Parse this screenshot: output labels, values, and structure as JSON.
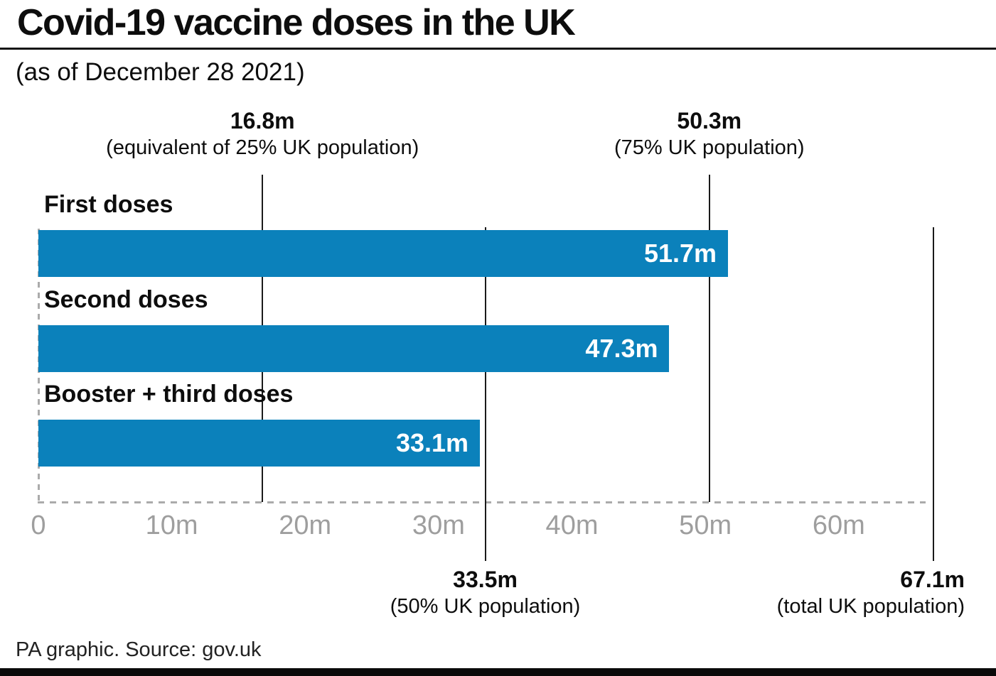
{
  "chart_data": {
    "type": "bar",
    "orientation": "horizontal",
    "title": "Covid-19 vaccine doses in the UK",
    "subtitle": "(as of December 28 2021)",
    "source": "PA graphic. Source: gov.uk",
    "categories": [
      "First doses",
      "Second doses",
      "Booster + third doses"
    ],
    "values": [
      51.7,
      47.3,
      33.1
    ],
    "value_labels": [
      "51.7m",
      "47.3m",
      "33.1m"
    ],
    "unit": "millions of doses",
    "x_max": 67.1,
    "x_ticks": [
      {
        "label": "0",
        "value": 0
      },
      {
        "label": "10m",
        "value": 10
      },
      {
        "label": "20m",
        "value": 20
      },
      {
        "label": "30m",
        "value": 30
      },
      {
        "label": "40m",
        "value": 40
      },
      {
        "label": "50m",
        "value": 50
      },
      {
        "label": "60m",
        "value": 60
      }
    ],
    "grid": "off",
    "legend": "none",
    "axis_style": "dashed-gray",
    "reference_lines": [
      {
        "value": 16.8,
        "label": "16.8m",
        "sublabel": "(equivalent of 25% UK population)",
        "position": "top",
        "align": "center"
      },
      {
        "value": 50.3,
        "label": "50.3m",
        "sublabel": "(75% UK population)",
        "position": "top",
        "align": "center"
      },
      {
        "value": 33.5,
        "label": "33.5m",
        "sublabel": "(50% UK population)",
        "position": "bottom",
        "align": "center"
      },
      {
        "value": 67.1,
        "label": "67.1m",
        "sublabel": "(total UK population)",
        "position": "bottom",
        "align": "right"
      }
    ],
    "colors": {
      "bar": "#0b81bb",
      "line": "#1a1a1a",
      "tick": "#9e9e9e",
      "dash": "#ababab",
      "text": "#0d0d0d"
    }
  }
}
